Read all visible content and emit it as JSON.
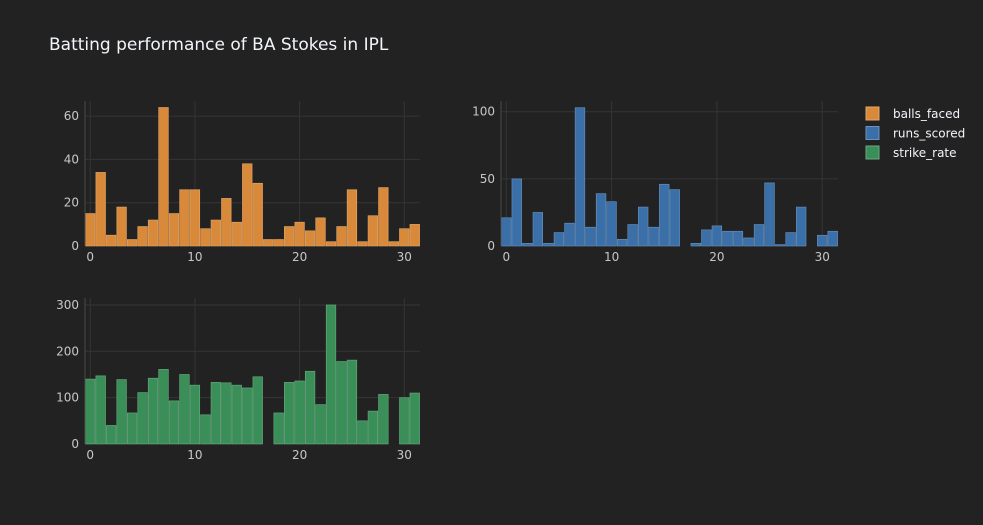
{
  "chart_data": {
    "type": "bar",
    "title": "Batting performance of BA Stokes in IPL",
    "legend_position": "top-right",
    "grid": true,
    "x": [
      0,
      1,
      2,
      3,
      4,
      5,
      6,
      7,
      8,
      9,
      10,
      11,
      12,
      13,
      14,
      15,
      16,
      17,
      18,
      19,
      20,
      21,
      22,
      23,
      24,
      25,
      26,
      27,
      28,
      29,
      30,
      31
    ],
    "series": [
      {
        "name": "balls_faced",
        "color": "#d88a3a",
        "xlim": [
          -0.5,
          31.5
        ],
        "ylim": [
          0,
          67
        ],
        "yticks": [
          0,
          20,
          40,
          60
        ],
        "xticks": [
          0,
          10,
          20,
          30
        ],
        "values": [
          15,
          34,
          5,
          18,
          3,
          9,
          12,
          64,
          15,
          26,
          26,
          8,
          12,
          22,
          11,
          38,
          29,
          3,
          3,
          9,
          11,
          7,
          13,
          2,
          9,
          26,
          2,
          14,
          27,
          2,
          8,
          10
        ]
      },
      {
        "name": "runs_scored",
        "color": "#3a6fa8",
        "xlim": [
          -0.5,
          31.5
        ],
        "ylim": [
          0,
          108
        ],
        "yticks": [
          0,
          50,
          100
        ],
        "xticks": [
          0,
          10,
          20,
          30
        ],
        "values": [
          21,
          50,
          2,
          25,
          2,
          10,
          17,
          103,
          14,
          39,
          33,
          5,
          16,
          29,
          14,
          46,
          42,
          0,
          2,
          12,
          15,
          11,
          11,
          6,
          16,
          47,
          1,
          10,
          29,
          0,
          8,
          11
        ]
      },
      {
        "name": "strike_rate",
        "color": "#3a8f58",
        "xlim": [
          -0.5,
          31.5
        ],
        "ylim": [
          0,
          315
        ],
        "yticks": [
          0,
          100,
          200,
          300
        ],
        "xticks": [
          0,
          10,
          20,
          30
        ],
        "values": [
          140,
          147,
          40,
          139,
          67,
          111,
          142,
          161,
          93,
          150,
          127,
          63,
          133,
          132,
          127,
          121,
          145,
          0,
          67,
          133,
          136,
          157,
          85,
          300,
          178,
          181,
          50,
          71,
          107,
          0,
          100,
          110
        ]
      }
    ]
  }
}
